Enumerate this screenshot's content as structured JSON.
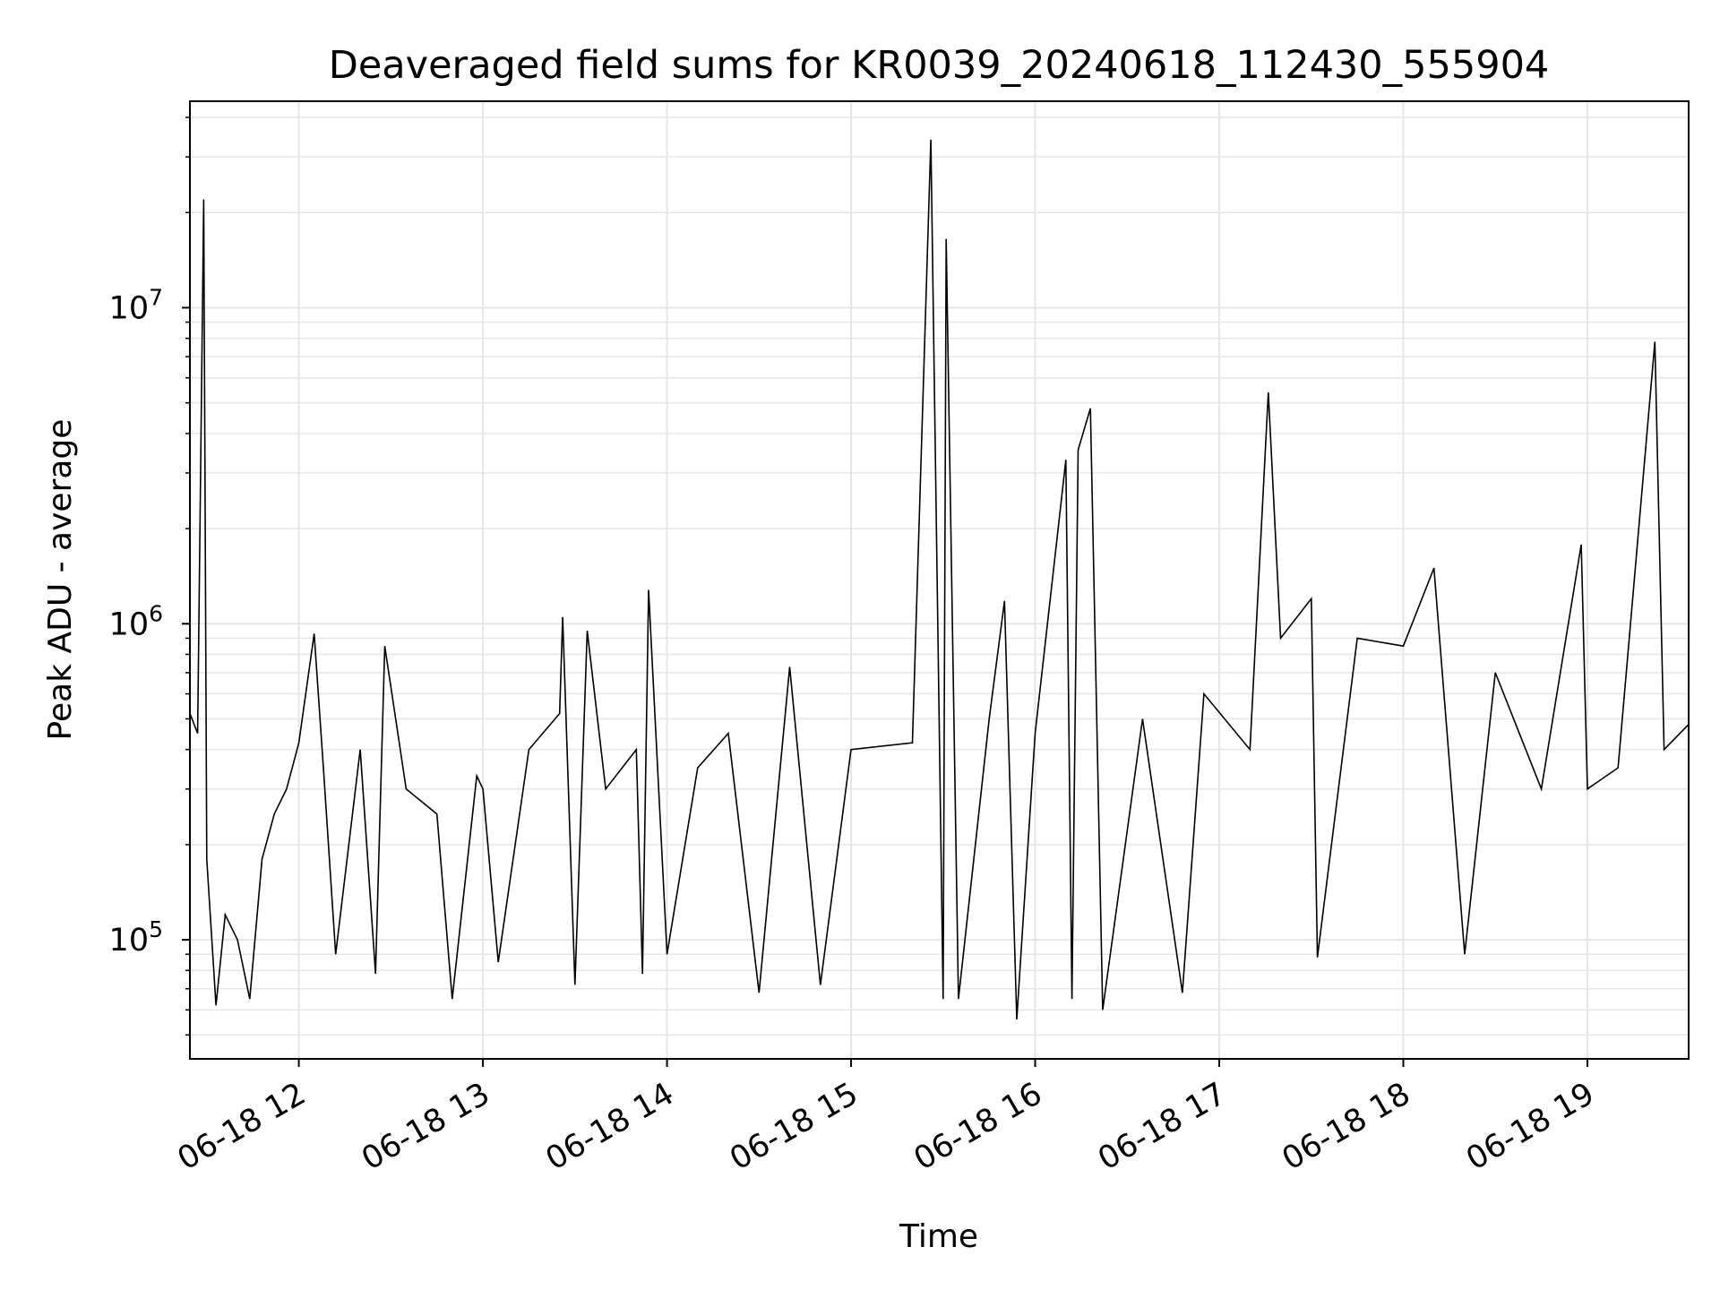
{
  "chart_data": {
    "type": "line",
    "title": "Deaveraged field sums for KR0039_20240618_112430_555904",
    "xlabel": "Time",
    "ylabel": "Peak ADU - average",
    "yscale": "log",
    "ylim": [
      42000,
      45000000
    ],
    "xlim": [
      "2024-06-18T11:24:30",
      "2024-06-18T19:33:00"
    ],
    "grid": true,
    "x_ticks": [
      {
        "value": "2024-06-18T12:00:00",
        "label": "06-18 12"
      },
      {
        "value": "2024-06-18T13:00:00",
        "label": "06-18 13"
      },
      {
        "value": "2024-06-18T14:00:00",
        "label": "06-18 14"
      },
      {
        "value": "2024-06-18T15:00:00",
        "label": "06-18 15"
      },
      {
        "value": "2024-06-18T16:00:00",
        "label": "06-18 16"
      },
      {
        "value": "2024-06-18T17:00:00",
        "label": "06-18 17"
      },
      {
        "value": "2024-06-18T18:00:00",
        "label": "06-18 18"
      },
      {
        "value": "2024-06-18T19:00:00",
        "label": "06-18 19"
      }
    ],
    "y_ticks": [
      {
        "value": 100000,
        "base": "10",
        "exp": "5"
      },
      {
        "value": 1000000,
        "base": "10",
        "exp": "6"
      },
      {
        "value": 10000000,
        "base": "10",
        "exp": "7"
      }
    ],
    "series": [
      {
        "color": "#000000",
        "points": [
          [
            "2024-06-18T11:24:30",
            520000
          ],
          [
            "2024-06-18T11:27:00",
            450000
          ],
          [
            "2024-06-18T11:29:00",
            22000000
          ],
          [
            "2024-06-18T11:30:00",
            180000
          ],
          [
            "2024-06-18T11:33:00",
            62000
          ],
          [
            "2024-06-18T11:36:00",
            120000
          ],
          [
            "2024-06-18T11:40:00",
            100000
          ],
          [
            "2024-06-18T11:44:00",
            65000
          ],
          [
            "2024-06-18T11:48:00",
            180000
          ],
          [
            "2024-06-18T11:52:00",
            250000
          ],
          [
            "2024-06-18T11:56:00",
            300000
          ],
          [
            "2024-06-18T12:00:00",
            420000
          ],
          [
            "2024-06-18T12:05:00",
            930000
          ],
          [
            "2024-06-18T12:08:00",
            350000
          ],
          [
            "2024-06-18T12:12:00",
            90000
          ],
          [
            "2024-06-18T12:20:00",
            400000
          ],
          [
            "2024-06-18T12:25:00",
            78000
          ],
          [
            "2024-06-18T12:28:00",
            850000
          ],
          [
            "2024-06-18T12:35:00",
            300000
          ],
          [
            "2024-06-18T12:45:00",
            250000
          ],
          [
            "2024-06-18T12:50:00",
            65000
          ],
          [
            "2024-06-18T12:58:00",
            330000
          ],
          [
            "2024-06-18T13:00:00",
            300000
          ],
          [
            "2024-06-18T13:05:00",
            85000
          ],
          [
            "2024-06-18T13:15:00",
            400000
          ],
          [
            "2024-06-18T13:25:00",
            520000
          ],
          [
            "2024-06-18T13:26:00",
            1050000
          ],
          [
            "2024-06-18T13:30:00",
            72000
          ],
          [
            "2024-06-18T13:34:00",
            950000
          ],
          [
            "2024-06-18T13:40:00",
            300000
          ],
          [
            "2024-06-18T13:50:00",
            400000
          ],
          [
            "2024-06-18T13:52:00",
            78000
          ],
          [
            "2024-06-18T13:54:00",
            1280000
          ],
          [
            "2024-06-18T14:00:00",
            90000
          ],
          [
            "2024-06-18T14:10:00",
            350000
          ],
          [
            "2024-06-18T14:20:00",
            450000
          ],
          [
            "2024-06-18T14:30:00",
            68000
          ],
          [
            "2024-06-18T14:40:00",
            730000
          ],
          [
            "2024-06-18T14:50:00",
            72000
          ],
          [
            "2024-06-18T15:00:00",
            400000
          ],
          [
            "2024-06-18T15:20:00",
            420000
          ],
          [
            "2024-06-18T15:26:00",
            34000000
          ],
          [
            "2024-06-18T15:30:00",
            65000
          ],
          [
            "2024-06-18T15:31:00",
            16500000
          ],
          [
            "2024-06-18T15:35:00",
            65000
          ],
          [
            "2024-06-18T15:45:00",
            500000
          ],
          [
            "2024-06-18T15:50:00",
            1180000
          ],
          [
            "2024-06-18T15:54:00",
            56000
          ],
          [
            "2024-06-18T16:00:00",
            450000
          ],
          [
            "2024-06-18T16:10:00",
            3300000
          ],
          [
            "2024-06-18T16:12:00",
            65000
          ],
          [
            "2024-06-18T16:14:00",
            3550000
          ],
          [
            "2024-06-18T16:18:00",
            4800000
          ],
          [
            "2024-06-18T16:22:00",
            60000
          ],
          [
            "2024-06-18T16:35:00",
            500000
          ],
          [
            "2024-06-18T16:48:00",
            68000
          ],
          [
            "2024-06-18T16:55:00",
            600000
          ],
          [
            "2024-06-18T17:10:00",
            400000
          ],
          [
            "2024-06-18T17:16:00",
            5400000
          ],
          [
            "2024-06-18T17:20:00",
            900000
          ],
          [
            "2024-06-18T17:30:00",
            1200000
          ],
          [
            "2024-06-18T17:32:00",
            88000
          ],
          [
            "2024-06-18T17:45:00",
            900000
          ],
          [
            "2024-06-18T18:00:00",
            850000
          ],
          [
            "2024-06-18T18:10:00",
            1500000
          ],
          [
            "2024-06-18T18:20:00",
            90000
          ],
          [
            "2024-06-18T18:30:00",
            700000
          ],
          [
            "2024-06-18T18:45:00",
            300000
          ],
          [
            "2024-06-18T18:58:00",
            1780000
          ],
          [
            "2024-06-18T19:00:00",
            300000
          ],
          [
            "2024-06-18T19:10:00",
            350000
          ],
          [
            "2024-06-18T19:22:00",
            7800000
          ],
          [
            "2024-06-18T19:25:00",
            400000
          ],
          [
            "2024-06-18T19:33:00",
            480000
          ]
        ]
      }
    ]
  }
}
